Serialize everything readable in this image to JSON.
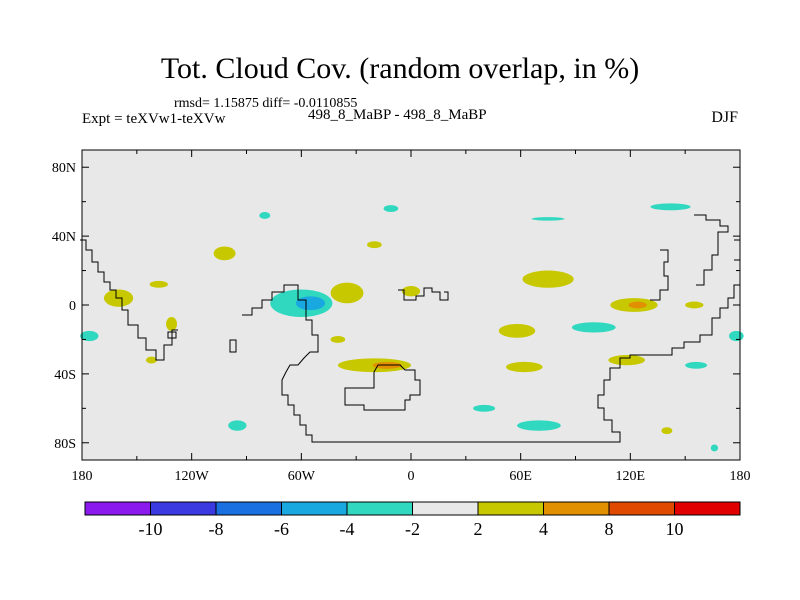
{
  "header": {
    "title": "Tot. Cloud Cov. (random overlap, in %)",
    "stats": "rmsd= 1.15875 diff= -0.0110855",
    "expt": "Expt = teXVw1-teXVw",
    "runs": "498_8_MaBP - 498_8_MaBP",
    "season": "DJF"
  },
  "map_data": {
    "type": "filled-contour-map",
    "projection": "equirectangular",
    "background_color": "#e8e8e8",
    "x_ticks": [
      {
        "value": -180,
        "label": "180"
      },
      {
        "value": -120,
        "label": "120W"
      },
      {
        "value": -60,
        "label": "60W"
      },
      {
        "value": 0,
        "label": "0"
      },
      {
        "value": 60,
        "label": "60E"
      },
      {
        "value": 120,
        "label": "120E"
      },
      {
        "value": 180,
        "label": "180"
      }
    ],
    "y_ticks": [
      {
        "value": 80,
        "label": "80N"
      },
      {
        "value": 40,
        "label": "40N"
      },
      {
        "value": 0,
        "label": "0"
      },
      {
        "value": -40,
        "label": "40S"
      },
      {
        "value": -80,
        "label": "80S"
      }
    ],
    "xlim": [
      -180,
      180
    ],
    "ylim": [
      -90,
      90
    ],
    "anomaly_patches": [
      {
        "lon": -160,
        "lat": 4,
        "rlon": 8,
        "rlat": 5,
        "color": "#c8c800"
      },
      {
        "lon": -176,
        "lat": -18,
        "rlon": 5,
        "rlat": 3,
        "color": "#30d8c0"
      },
      {
        "lon": -138,
        "lat": 12,
        "rlon": 5,
        "rlat": 2,
        "color": "#c8c800"
      },
      {
        "lon": -131,
        "lat": -11,
        "rlon": 3,
        "rlat": 4,
        "color": "#c8c800"
      },
      {
        "lon": -142,
        "lat": -32,
        "rlon": 3,
        "rlat": 2,
        "color": "#c8c800"
      },
      {
        "lon": -60,
        "lat": 1,
        "rlon": 17,
        "rlat": 8,
        "color": "#30d8c0"
      },
      {
        "lon": -55,
        "lat": 1,
        "rlon": 8,
        "rlat": 4,
        "color": "#1aa8e0"
      },
      {
        "lon": -35,
        "lat": 7,
        "rlon": 9,
        "rlat": 6,
        "color": "#c8c800"
      },
      {
        "lon": -102,
        "lat": 30,
        "rlon": 6,
        "rlat": 4,
        "color": "#c8c800"
      },
      {
        "lon": -20,
        "lat": 35,
        "rlon": 4,
        "rlat": 2,
        "color": "#c8c800"
      },
      {
        "lon": -40,
        "lat": -20,
        "rlon": 4,
        "rlat": 2,
        "color": "#c8c800"
      },
      {
        "lon": -20,
        "lat": -35,
        "rlon": 20,
        "rlat": 4,
        "color": "#c8c800"
      },
      {
        "lon": -13,
        "lat": -35,
        "rlon": 8,
        "rlat": 2,
        "color": "#e09000"
      },
      {
        "lon": 0,
        "lat": 8,
        "rlon": 5,
        "rlat": 3,
        "color": "#c8c800"
      },
      {
        "lon": 75,
        "lat": 15,
        "rlon": 14,
        "rlat": 5,
        "color": "#c8c800"
      },
      {
        "lon": 122,
        "lat": 0,
        "rlon": 13,
        "rlat": 4,
        "color": "#c8c800"
      },
      {
        "lon": 124,
        "lat": 0,
        "rlon": 5,
        "rlat": 2,
        "color": "#e09000"
      },
      {
        "lon": 100,
        "lat": -13,
        "rlon": 12,
        "rlat": 3,
        "color": "#30d8c0"
      },
      {
        "lon": 58,
        "lat": -15,
        "rlon": 10,
        "rlat": 4,
        "color": "#c8c800"
      },
      {
        "lon": 62,
        "lat": -36,
        "rlon": 10,
        "rlat": 3,
        "color": "#c8c800"
      },
      {
        "lon": 118,
        "lat": -32,
        "rlon": 10,
        "rlat": 3,
        "color": "#c8c800"
      },
      {
        "lon": 156,
        "lat": -35,
        "rlon": 6,
        "rlat": 2,
        "color": "#30d8c0"
      },
      {
        "lon": 155,
        "lat": 0,
        "rlon": 5,
        "rlat": 2,
        "color": "#c8c800"
      },
      {
        "lon": 178,
        "lat": -18,
        "rlon": 4,
        "rlat": 3,
        "color": "#30d8c0"
      },
      {
        "lon": 142,
        "lat": 57,
        "rlon": 11,
        "rlat": 2,
        "color": "#30d8c0"
      },
      {
        "lon": 75,
        "lat": 50,
        "rlon": 9,
        "rlat": 1,
        "color": "#30d8c0"
      },
      {
        "lon": -80,
        "lat": 52,
        "rlon": 3,
        "rlat": 2,
        "color": "#30d8c0"
      },
      {
        "lon": -11,
        "lat": 56,
        "rlon": 4,
        "rlat": 2,
        "color": "#30d8c0"
      },
      {
        "lon": 40,
        "lat": -60,
        "rlon": 6,
        "rlat": 2,
        "color": "#30d8c0"
      },
      {
        "lon": 70,
        "lat": -70,
        "rlon": 12,
        "rlat": 3,
        "color": "#30d8c0"
      },
      {
        "lon": -95,
        "lat": -70,
        "rlon": 5,
        "rlat": 3,
        "color": "#30d8c0"
      },
      {
        "lon": 166,
        "lat": -83,
        "rlon": 2,
        "rlat": 2,
        "color": "#30d8c0"
      },
      {
        "lon": 140,
        "lat": -73,
        "rlon": 3,
        "rlat": 2,
        "color": "#c8c800"
      }
    ],
    "colorbar": {
      "colors": [
        "#8a1aee",
        "#3a3ae0",
        "#1a70e0",
        "#1aa8e0",
        "#30d8c0",
        "#e8e8e8",
        "#c8c800",
        "#e09000",
        "#e04a00",
        "#e00000"
      ],
      "labels": [
        "-10",
        "-8",
        "-6",
        "-4",
        "-2",
        "2",
        "4",
        "8",
        "10"
      ]
    }
  }
}
